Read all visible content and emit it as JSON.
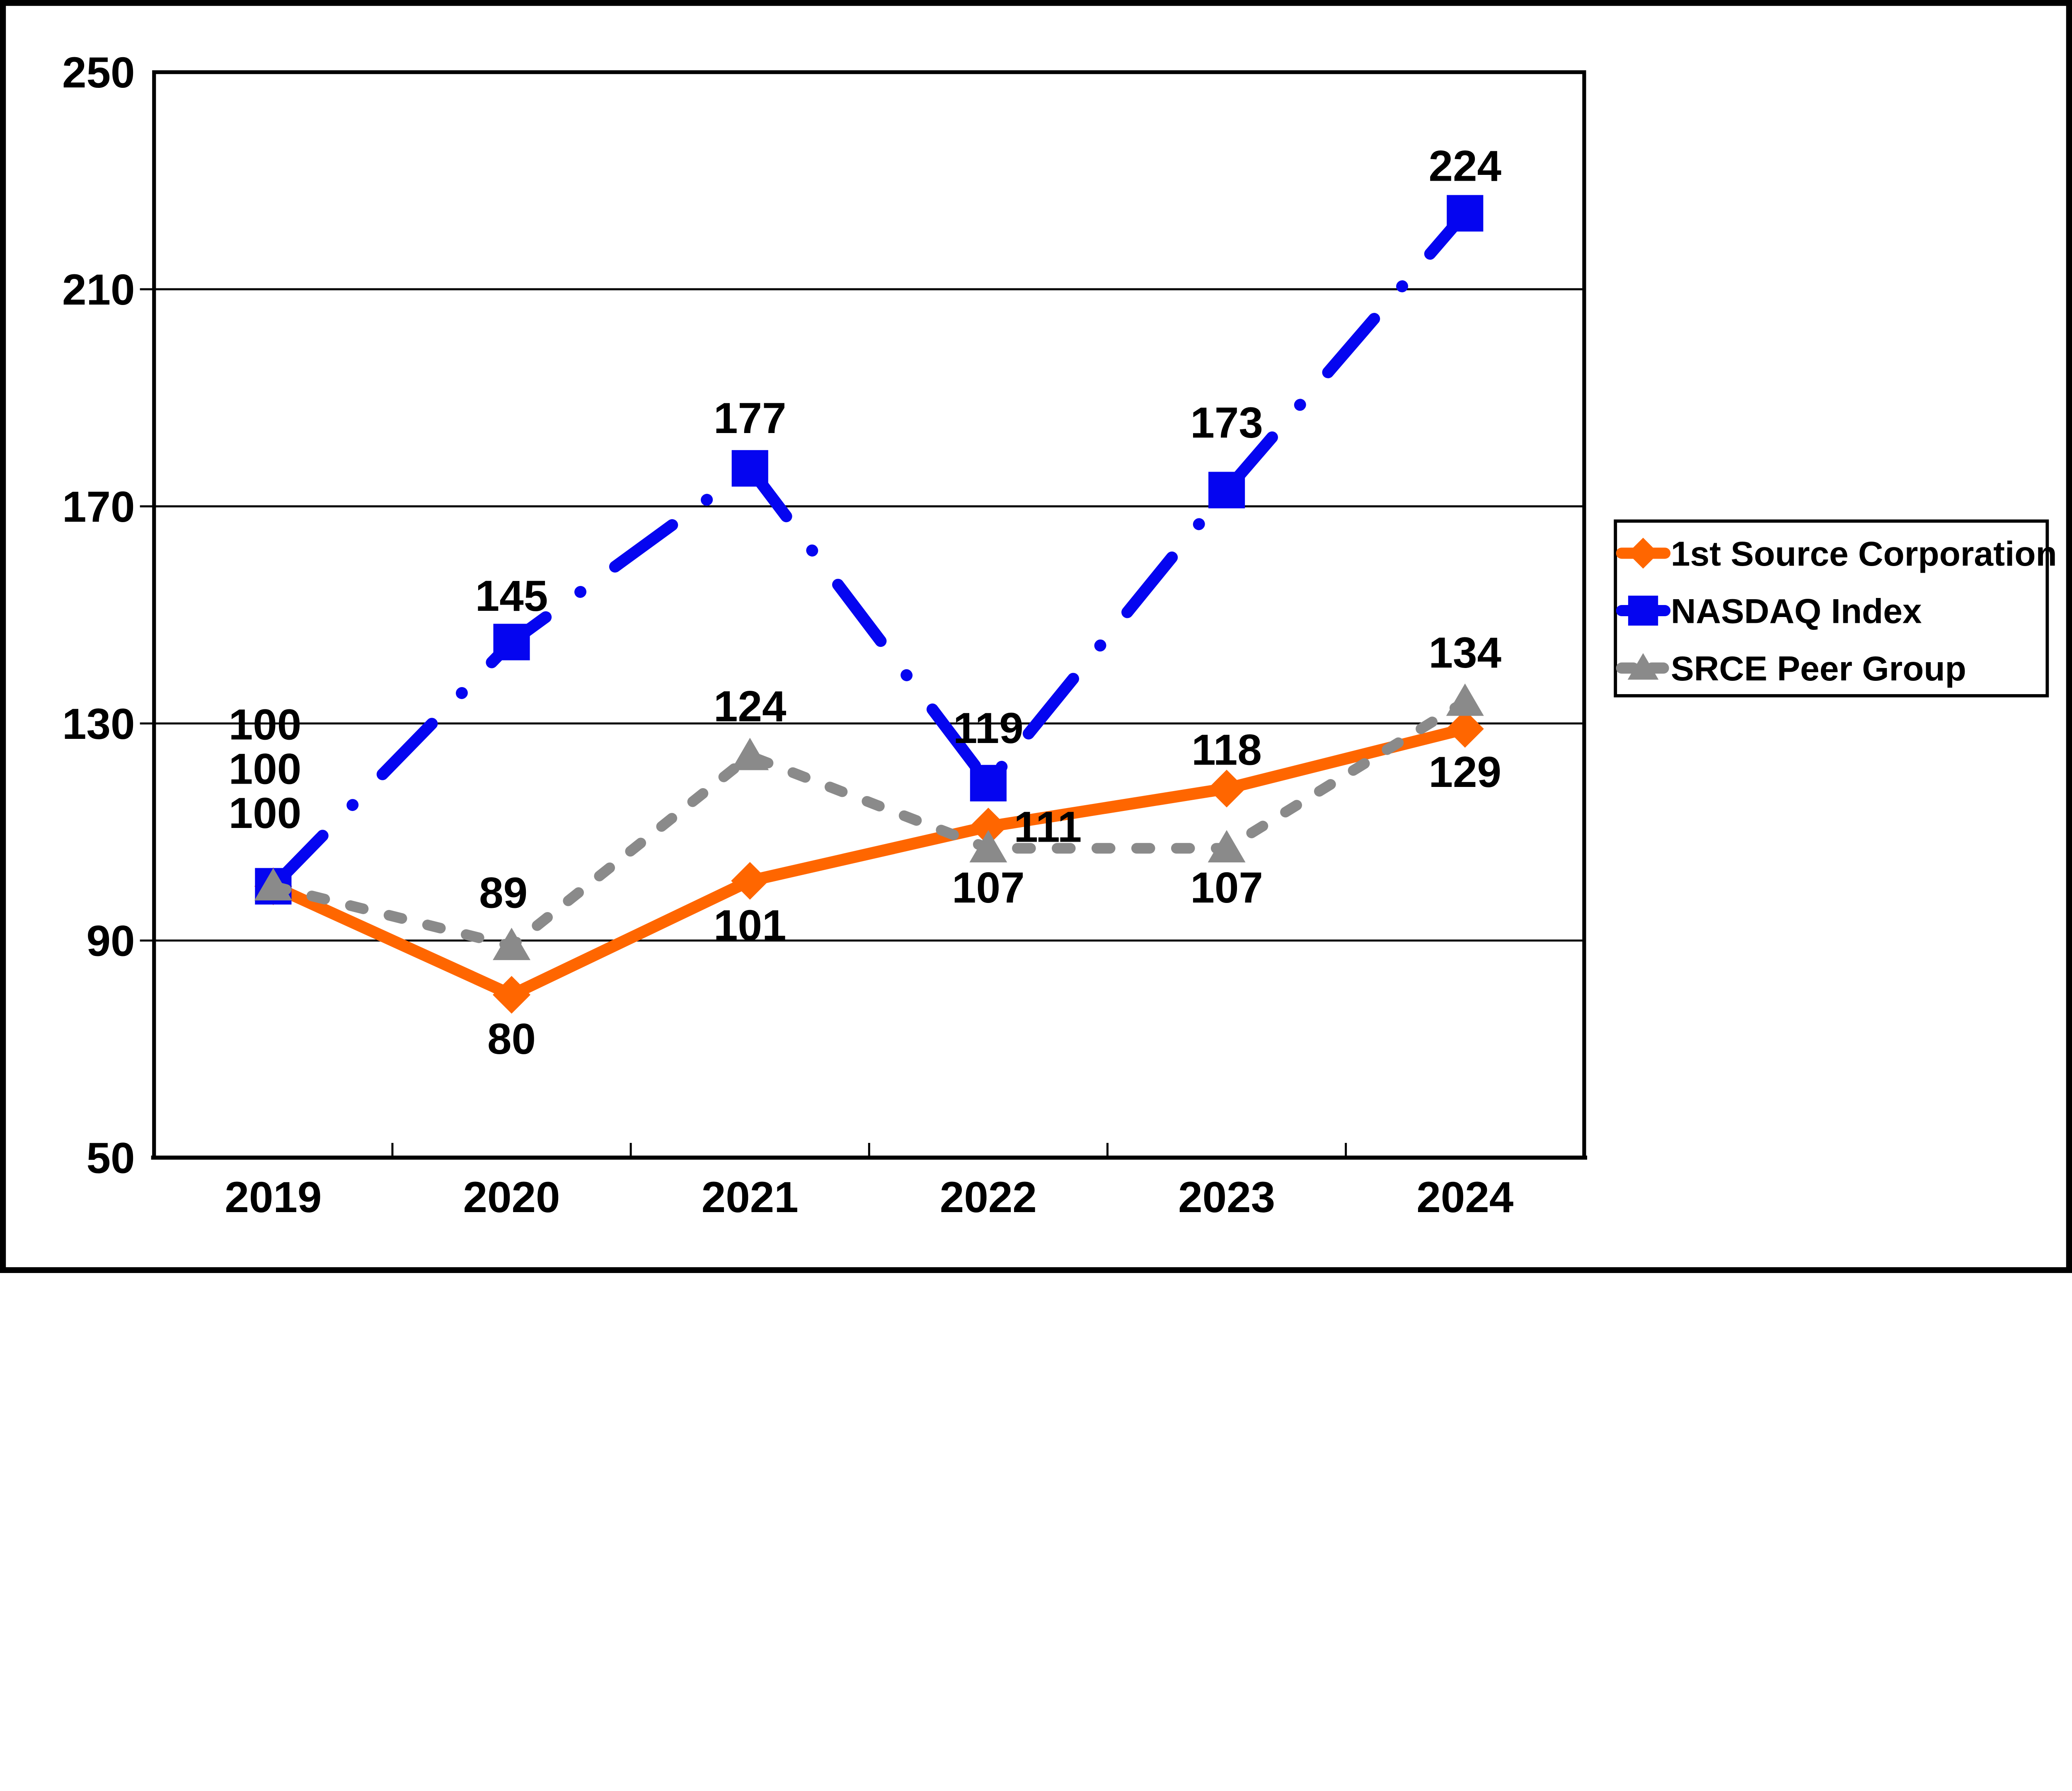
{
  "chart_data": {
    "type": "line",
    "title": "",
    "xlabel": "",
    "ylabel": "",
    "categories": [
      "2019",
      "2020",
      "2021",
      "2022",
      "2023",
      "2024"
    ],
    "y_ticks": [
      250,
      210,
      170,
      130,
      90,
      50
    ],
    "ylim": [
      50,
      250
    ],
    "grid": true,
    "legend_position": "right",
    "background_color": "#ffffff",
    "frame_color": "#000000",
    "series": [
      {
        "name": "1st Source Corporation",
        "color": "#FF6600",
        "marker": "diamond",
        "line_style": "solid",
        "values": [
          100,
          80,
          101,
          111,
          118,
          129
        ],
        "data_labels": [
          "100",
          "80",
          "101",
          "111",
          "118",
          "129"
        ],
        "label_offsets": [
          [
            -28,
            -250
          ],
          [
            0,
            148
          ],
          [
            0,
            150
          ],
          [
            202,
            0
          ],
          [
            0,
            -133
          ],
          [
            0,
            145
          ]
        ]
      },
      {
        "name": "NASDAQ Index",
        "color": "#0505F0",
        "marker": "square",
        "line_style": "dash-dot",
        "values": [
          100,
          145,
          177,
          119,
          173,
          224
        ],
        "data_labels": [
          "100",
          "145",
          "177",
          "119",
          "173",
          "224"
        ],
        "label_offsets": [
          [
            -28,
            -550
          ],
          [
            0,
            -158
          ],
          [
            0,
            -172
          ],
          [
            0,
            -188
          ],
          [
            0,
            -230
          ],
          [
            0,
            -162
          ]
        ]
      },
      {
        "name": "SRCE Peer Group",
        "color": "#8A8A8A",
        "marker": "triangle",
        "line_style": "dashed",
        "values": [
          100,
          89,
          124,
          107,
          107,
          134
        ],
        "data_labels": [
          "100",
          "89",
          "124",
          "107",
          "107",
          "134"
        ],
        "label_offsets": [
          [
            -28,
            -400
          ],
          [
            -28,
            -182
          ],
          [
            0,
            -170
          ],
          [
            0,
            132
          ],
          [
            0,
            132
          ],
          [
            0,
            -168
          ]
        ]
      }
    ]
  }
}
